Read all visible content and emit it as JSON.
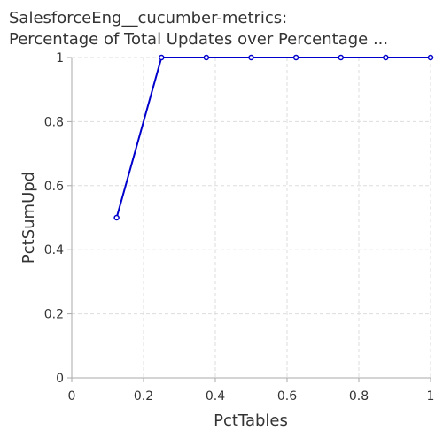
{
  "chart_data": {
    "type": "line",
    "title_lines": [
      "SalesforceEng__cucumber-metrics:",
      "Percentage of Total Updates over Percentage ..."
    ],
    "xlabel": "PctTables",
    "ylabel": "PctSumUpd",
    "xlim": [
      0,
      1
    ],
    "ylim": [
      0,
      1
    ],
    "x_ticks": [
      0,
      0.2,
      0.4,
      0.6,
      0.8,
      1
    ],
    "x_tick_labels": [
      "0",
      "0.2",
      "0.4",
      "0.6",
      "0.8",
      "1"
    ],
    "y_ticks": [
      0,
      0.2,
      0.4,
      0.6,
      0.8,
      1
    ],
    "y_tick_labels": [
      "0",
      "0.2",
      "0.4",
      "0.6",
      "0.8",
      "1"
    ],
    "grid": true,
    "legend": "none",
    "series": [
      {
        "color": "#0000cc",
        "points": [
          {
            "x": 0.125,
            "y": 0.5
          },
          {
            "x": 0.25,
            "y": 1
          },
          {
            "x": 0.375,
            "y": 1
          },
          {
            "x": 0.5,
            "y": 1
          },
          {
            "x": 0.625,
            "y": 1
          },
          {
            "x": 0.75,
            "y": 1
          },
          {
            "x": 0.875,
            "y": 1
          },
          {
            "x": 1,
            "y": 1
          }
        ]
      }
    ],
    "colors": {
      "grid": "#dddddd",
      "axis": "#aaaaaa",
      "text": "#333333"
    }
  }
}
